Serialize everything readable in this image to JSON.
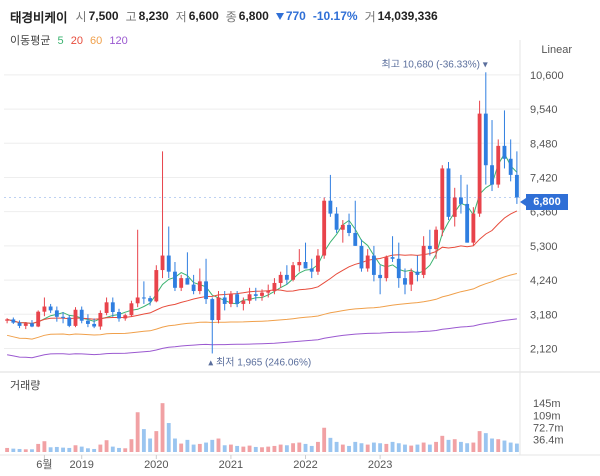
{
  "header": {
    "name": "태경비케이",
    "open_label": "시",
    "open": "7,500",
    "high_label": "고",
    "high": "8,230",
    "low_label": "저",
    "low": "6,600",
    "close_label": "종",
    "close": "6,800",
    "change": "770",
    "change_pct": "-10.17%",
    "volume_label": "거",
    "volume": "14,039,336"
  },
  "ma": {
    "title": "이동평균",
    "items": [
      {
        "label": "5",
        "color": "#3cb371"
      },
      {
        "label": "20",
        "color": "#e74c3c"
      },
      {
        "label": "60",
        "color": "#f0a04b"
      },
      {
        "label": "120",
        "color": "#9b59d0"
      }
    ]
  },
  "scale": "Linear",
  "volume_title": "거래량",
  "colors": {
    "up": "#e8434b",
    "down": "#2f7ee0",
    "up_vol": "#f1a1a4",
    "down_vol": "#9ac5f0"
  },
  "chart_data": {
    "type": "candlestick",
    "price_ylim": [
      1700,
      11000
    ],
    "price_ticks": [
      "10,600",
      "9,540",
      "8,480",
      "7,420",
      "6,360",
      "5,300",
      "4,240",
      "3,180",
      "2,120"
    ],
    "price_tick_values": [
      10600,
      9540,
      8480,
      7420,
      6360,
      5300,
      4240,
      3180,
      2120
    ],
    "current_price": "6,800",
    "current_value": 6800,
    "max_annotation": "최고 10,680 (-36.33%)",
    "min_annotation": "최저 1,965 (246.06%)",
    "volume_ticks": [
      "145m",
      "109m",
      "72.7m",
      "36.4m"
    ],
    "volume_tick_values": [
      145,
      109,
      72.7,
      36.4
    ],
    "volume_ylim": [
      0,
      190
    ],
    "x_labels": [
      "6월",
      "2019",
      "2020",
      "2021",
      "2022",
      "2023"
    ],
    "x_label_index": [
      6,
      12,
      24,
      36,
      48,
      60
    ],
    "candles": [
      [
        2980,
        3060,
        2900,
        3020,
        12
      ],
      [
        3020,
        3080,
        2880,
        2920,
        10
      ],
      [
        2920,
        2990,
        2750,
        2820,
        9
      ],
      [
        2820,
        2940,
        2720,
        2900,
        8
      ],
      [
        2900,
        3000,
        2780,
        2800,
        8
      ],
      [
        2800,
        3300,
        2780,
        3260,
        24
      ],
      [
        3260,
        3700,
        3120,
        3420,
        32
      ],
      [
        3420,
        3500,
        3220,
        3300,
        14
      ],
      [
        3300,
        3420,
        2950,
        3100,
        15
      ],
      [
        3100,
        3250,
        2900,
        3080,
        13
      ],
      [
        3080,
        3150,
        2780,
        2820,
        12
      ],
      [
        2820,
        3400,
        2780,
        3320,
        20
      ],
      [
        3320,
        3420,
        2900,
        2980,
        16
      ],
      [
        2980,
        3180,
        2780,
        2880,
        11
      ],
      [
        2880,
        3050,
        2750,
        2800,
        9
      ],
      [
        2800,
        3300,
        2700,
        3220,
        22
      ],
      [
        3220,
        3700,
        3150,
        3550,
        35
      ],
      [
        3550,
        3700,
        3100,
        3250,
        16
      ],
      [
        3250,
        3350,
        2950,
        3050,
        12
      ],
      [
        3050,
        3200,
        2980,
        3150,
        11
      ],
      [
        3150,
        3600,
        3100,
        3520,
        38
      ],
      [
        3520,
        5800,
        3400,
        3700,
        118
      ],
      [
        3700,
        4200,
        3500,
        3680,
        68
      ],
      [
        3680,
        3750,
        3450,
        3580,
        40
      ],
      [
        3580,
        4700,
        3550,
        4550,
        62
      ],
      [
        4550,
        8230,
        4300,
        5000,
        145
      ],
      [
        5000,
        5900,
        4300,
        4500,
        86
      ],
      [
        4500,
        4800,
        3900,
        4000,
        40
      ],
      [
        4000,
        4400,
        3900,
        4300,
        25
      ],
      [
        4300,
        5100,
        4100,
        4100,
        36
      ],
      [
        4100,
        4400,
        3800,
        3900,
        22
      ],
      [
        3900,
        4600,
        3800,
        4200,
        24
      ],
      [
        4200,
        4900,
        3500,
        3650,
        28
      ],
      [
        3650,
        3700,
        1965,
        3000,
        36
      ],
      [
        3000,
        3900,
        2900,
        3700,
        40
      ],
      [
        3700,
        3900,
        3300,
        3500,
        20
      ],
      [
        3500,
        3900,
        3400,
        3800,
        22
      ],
      [
        3800,
        3900,
        3400,
        3500,
        18
      ],
      [
        3500,
        3700,
        3300,
        3600,
        16
      ],
      [
        3600,
        4000,
        3500,
        3800,
        19
      ],
      [
        3800,
        4000,
        3600,
        3750,
        15
      ],
      [
        3750,
        3950,
        3600,
        3850,
        14
      ],
      [
        3850,
        4100,
        3700,
        3900,
        16
      ],
      [
        3900,
        4300,
        3800,
        4150,
        18
      ],
      [
        4150,
        4500,
        4000,
        4400,
        22
      ],
      [
        4400,
        4700,
        4100,
        4250,
        20
      ],
      [
        4250,
        4800,
        4200,
        4700,
        26
      ],
      [
        4700,
        5200,
        4500,
        4800,
        28
      ],
      [
        4800,
        5400,
        4600,
        4600,
        24
      ],
      [
        4600,
        4900,
        4300,
        4500,
        18
      ],
      [
        4500,
        5200,
        4400,
        5000,
        30
      ],
      [
        5000,
        6800,
        4900,
        6700,
        72
      ],
      [
        6700,
        7500,
        6200,
        6300,
        42
      ],
      [
        6300,
        6500,
        5700,
        5800,
        30
      ],
      [
        5800,
        6100,
        5400,
        5950,
        22
      ],
      [
        5950,
        6300,
        5600,
        5700,
        18
      ],
      [
        5700,
        6700,
        5300,
        5300,
        30
      ],
      [
        5300,
        5500,
        4500,
        4600,
        26
      ],
      [
        4600,
        5200,
        4500,
        5000,
        22
      ],
      [
        5000,
        5300,
        4200,
        4400,
        28
      ],
      [
        4400,
        4700,
        3800,
        4300,
        26
      ],
      [
        4300,
        5000,
        4200,
        4950,
        24
      ],
      [
        4950,
        5600,
        4800,
        4900,
        30
      ],
      [
        4900,
        5400,
        4000,
        4300,
        26
      ],
      [
        4300,
        4600,
        3800,
        4100,
        22
      ],
      [
        4100,
        4600,
        3900,
        4500,
        19
      ],
      [
        4500,
        5000,
        4200,
        4400,
        22
      ],
      [
        4400,
        5600,
        4300,
        5300,
        28
      ],
      [
        5300,
        5800,
        5000,
        5200,
        22
      ],
      [
        5200,
        5900,
        4900,
        5800,
        30
      ],
      [
        5800,
        7800,
        5600,
        7700,
        48
      ],
      [
        7700,
        7900,
        6100,
        6200,
        36
      ],
      [
        6200,
        7100,
        5900,
        6800,
        38
      ],
      [
        6800,
        7500,
        6300,
        6600,
        30
      ],
      [
        6600,
        7200,
        5400,
        5400,
        26
      ],
      [
        5400,
        6500,
        5300,
        6300,
        28
      ],
      [
        6300,
        9800,
        6200,
        9400,
        62
      ],
      [
        9400,
        10680,
        7200,
        7800,
        56
      ],
      [
        7800,
        9200,
        7000,
        7200,
        40
      ],
      [
        7200,
        8600,
        7100,
        8400,
        38
      ],
      [
        8400,
        9500,
        7700,
        8000,
        34
      ],
      [
        8000,
        8600,
        7300,
        7500,
        28
      ],
      [
        7500,
        8230,
        6600,
        6800,
        25
      ]
    ]
  }
}
